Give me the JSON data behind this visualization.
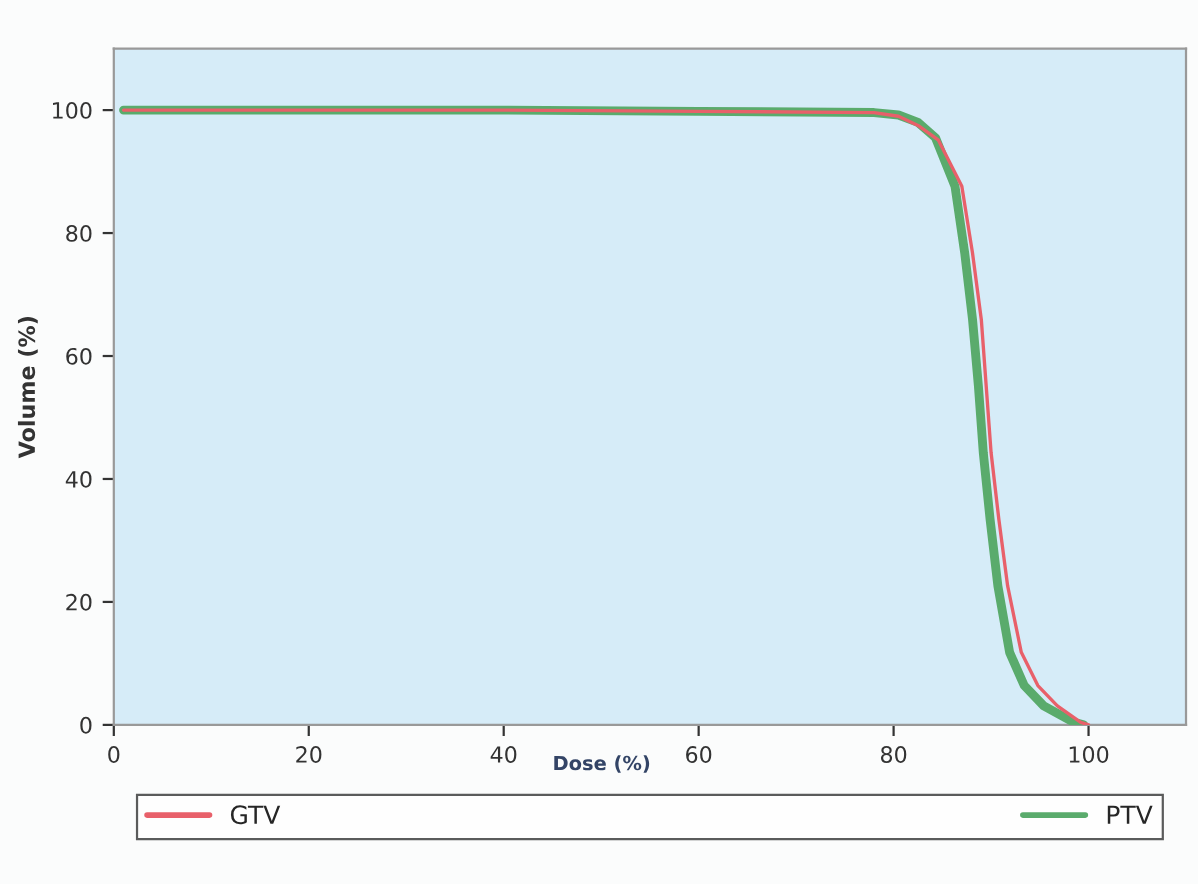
{
  "chart_data": {
    "type": "line",
    "xlabel": "Dose (%)",
    "ylabel": "Volume (%)",
    "xlim": [
      0,
      110
    ],
    "ylim": [
      0,
      110
    ],
    "xticks": [
      0,
      20,
      40,
      60,
      80,
      100
    ],
    "yticks": [
      0,
      20,
      40,
      60,
      80,
      100
    ],
    "grid": false,
    "legend": "bottom",
    "marker": "none",
    "line_style": "solid",
    "series": [
      {
        "name": "GTV",
        "color": "#e8606a",
        "x": [
          1,
          20,
          40,
          60,
          78,
          80.5,
          82.5,
          84.6,
          87.0,
          88.1,
          89.0,
          89.5,
          90.0,
          90.8,
          91.7,
          93.1,
          94.8,
          96.8,
          99.2,
          100
        ],
        "values": [
          100,
          100,
          100,
          99.8,
          99.6,
          99,
          97.5,
          95.1,
          87.6,
          76.7,
          65.9,
          55.1,
          44.3,
          33.4,
          22.6,
          11.8,
          6.4,
          3.1,
          0.4,
          0
        ]
      },
      {
        "name": "PTV",
        "color": "#5aab6c",
        "x": [
          1,
          20,
          40,
          60,
          78,
          80.5,
          82.5,
          84.3,
          86.3,
          87.3,
          88.1,
          88.7,
          89.2,
          89.9,
          90.7,
          91.9,
          93.4,
          95.4,
          98.5,
          99.5
        ],
        "values": [
          100,
          100,
          100,
          99.8,
          99.6,
          99.2,
          98,
          95.5,
          87.6,
          76.7,
          65.9,
          55.1,
          44.3,
          33.4,
          22.6,
          11.8,
          6.4,
          3.1,
          0.4,
          0
        ]
      }
    ]
  }
}
